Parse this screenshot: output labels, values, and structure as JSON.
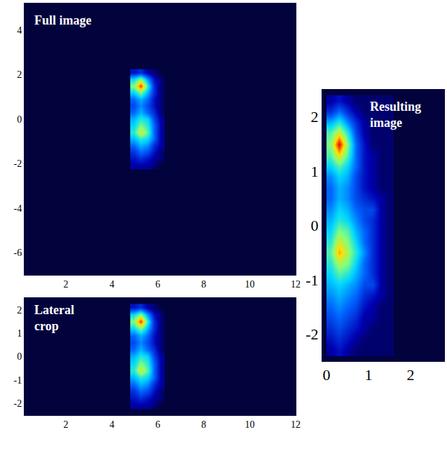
{
  "chart_data": [
    {
      "type": "heatmap",
      "title": "Full image",
      "xlim": [
        0.2,
        12
      ],
      "ylim": [
        -7.0,
        5.2
      ],
      "xticks": [
        2,
        4,
        6,
        8,
        10,
        12
      ],
      "yticks": [
        -6,
        -4,
        -2,
        0,
        2,
        4
      ],
      "zlim": [
        0,
        10
      ],
      "x": [
        4.95,
        5.25,
        5.55,
        5.85,
        6.15
      ],
      "y": [
        -2.1,
        -1.8,
        -1.5,
        -1.2,
        -0.9,
        -0.6,
        -0.3,
        0,
        0.3,
        0.6,
        0.9,
        1.2,
        1.5,
        1.8,
        2.1
      ],
      "z": [
        [
          1,
          1,
          1,
          0.5,
          0
        ],
        [
          1.5,
          2,
          1.5,
          1,
          0.5
        ],
        [
          2,
          3,
          2.5,
          1.5,
          0.5
        ],
        [
          3,
          4,
          3.5,
          2,
          1
        ],
        [
          4,
          5,
          4.5,
          3,
          1
        ],
        [
          5,
          7,
          5.5,
          3,
          1
        ],
        [
          4.5,
          6,
          5,
          3,
          1
        ],
        [
          4,
          5,
          4.5,
          2.5,
          1
        ],
        [
          3,
          4,
          3,
          2,
          0.5
        ],
        [
          2.5,
          3.5,
          2.5,
          1.5,
          0.5
        ],
        [
          3,
          4,
          3,
          1.5,
          0.5
        ],
        [
          4.5,
          6,
          4,
          2,
          0.5
        ],
        [
          6,
          9,
          5,
          2,
          0.5
        ],
        [
          4.5,
          6,
          3.5,
          1.5,
          0.5
        ],
        [
          1.5,
          2,
          1,
          0.5,
          0
        ]
      ]
    },
    {
      "type": "heatmap",
      "title": "Lateral\ncrop",
      "xlim": [
        0.2,
        12
      ],
      "ylim": [
        -2.5,
        2.5
      ],
      "xticks": [
        2,
        4,
        6,
        8,
        10,
        12
      ],
      "yticks": [
        -2,
        -1,
        0,
        1,
        2
      ],
      "zlim": [
        0,
        10
      ],
      "x": [
        4.95,
        5.25,
        5.55,
        5.85,
        6.15
      ],
      "y": [
        -2.1,
        -1.8,
        -1.5,
        -1.2,
        -0.9,
        -0.6,
        -0.3,
        0,
        0.3,
        0.6,
        0.9,
        1.2,
        1.5,
        1.8,
        2.1
      ],
      "z": [
        [
          1,
          1,
          1,
          0.5,
          0
        ],
        [
          1.5,
          2,
          1.5,
          1,
          0.5
        ],
        [
          2,
          3,
          2.5,
          1.5,
          0.5
        ],
        [
          3,
          4,
          3.5,
          2,
          1
        ],
        [
          4,
          5,
          4.5,
          3,
          1
        ],
        [
          5,
          7,
          5.5,
          3,
          1
        ],
        [
          4.5,
          6,
          5,
          3,
          1
        ],
        [
          4,
          5,
          4.5,
          2.5,
          1
        ],
        [
          3,
          4,
          3,
          2,
          0.5
        ],
        [
          2.5,
          3.5,
          2.5,
          1.5,
          0.5
        ],
        [
          3,
          4,
          3,
          1.5,
          0.5
        ],
        [
          4.5,
          6,
          4,
          2,
          0.5
        ],
        [
          6,
          9,
          5,
          2,
          0.5
        ],
        [
          4.5,
          6,
          3.5,
          1.5,
          0.5
        ],
        [
          1.5,
          2,
          1,
          0.5,
          0
        ]
      ]
    },
    {
      "type": "heatmap",
      "title": "Resulting\nimage",
      "xlim": [
        -0.1,
        2.8
      ],
      "ylim": [
        -2.5,
        2.5
      ],
      "xticks": [
        0,
        1,
        2
      ],
      "yticks": [
        -2,
        -1,
        0,
        1,
        2
      ],
      "zlim": [
        0,
        10
      ],
      "x": [
        0.1,
        0.3,
        0.5,
        0.7,
        0.9,
        1.1,
        1.3,
        1.5
      ],
      "y": [
        -2.3,
        -2.1,
        -1.9,
        -1.7,
        -1.5,
        -1.3,
        -1.1,
        -0.9,
        -0.7,
        -0.5,
        -0.3,
        -0.1,
        0.1,
        0.3,
        0.5,
        0.7,
        0.9,
        1.1,
        1.3,
        1.5,
        1.7,
        1.9,
        2.1,
        2.3
      ],
      "z": [
        [
          1,
          1.5,
          1,
          0.5,
          0.5,
          0.5,
          0.5,
          0.5
        ],
        [
          1.5,
          2,
          1.5,
          1,
          0.5,
          0.5,
          0.5,
          0.5
        ],
        [
          2,
          2.5,
          2,
          1.5,
          1,
          0.5,
          0.5,
          0.5
        ],
        [
          2.5,
          3,
          2.5,
          2,
          1,
          1,
          0.5,
          0.5
        ],
        [
          3,
          3.5,
          3,
          2.5,
          1.5,
          1,
          0.5,
          0.5
        ],
        [
          3.5,
          4,
          3.5,
          3,
          2,
          1.5,
          1,
          0.5
        ],
        [
          4,
          4.5,
          4,
          3.5,
          2.5,
          2.5,
          1,
          0.5
        ],
        [
          4.5,
          5.5,
          5,
          4,
          3,
          2,
          1,
          0.5
        ],
        [
          5,
          6.5,
          6,
          4.5,
          3,
          2,
          1,
          0.5
        ],
        [
          5.5,
          8,
          6.5,
          5,
          3.5,
          2,
          1,
          0.5
        ],
        [
          5,
          7,
          6,
          4.5,
          3,
          2,
          1,
          0.5
        ],
        [
          4.5,
          6,
          5.5,
          4,
          3,
          2,
          1,
          0.5
        ],
        [
          4,
          5,
          4.5,
          3.5,
          2.5,
          2,
          1,
          0.5
        ],
        [
          3.5,
          4.5,
          4,
          3,
          2.5,
          2.5,
          1,
          0.5
        ],
        [
          3,
          4,
          3.5,
          2.5,
          2,
          1.5,
          1,
          0.5
        ],
        [
          3,
          4,
          3.5,
          2.5,
          1.5,
          1,
          0.5,
          0.5
        ],
        [
          3.5,
          4.5,
          4,
          2.5,
          1.5,
          1,
          0.5,
          0.5
        ],
        [
          4.5,
          5.5,
          4.5,
          3,
          1.5,
          1,
          0.5,
          0.5
        ],
        [
          5.5,
          7.5,
          5.5,
          3,
          1.5,
          1,
          0.5,
          0.5
        ],
        [
          6,
          9.5,
          6,
          3,
          1.5,
          0.5,
          0.5,
          0.5
        ],
        [
          5.5,
          7,
          5,
          2.5,
          1,
          0.5,
          0.5,
          0.5
        ],
        [
          4,
          5,
          3.5,
          2,
          1,
          0.5,
          0.5,
          0.5
        ],
        [
          2,
          3,
          2,
          1,
          0.5,
          0.5,
          0.5,
          0.5
        ],
        [
          1,
          1.5,
          1,
          0.5,
          0.5,
          0.5,
          0.5,
          0.5
        ]
      ]
    }
  ]
}
